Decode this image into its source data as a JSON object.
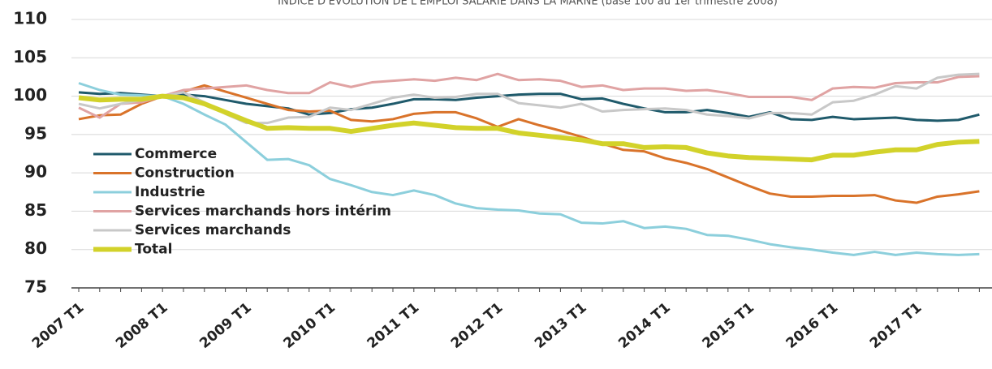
{
  "chart_data": {
    "type": "line",
    "title": "INDICE D'ÉVOLUTION DE L'EMPLOI SALARIÉ DANS LA MARNE (base 100 au 1er trimestre 2008)",
    "categories": [
      "2007 T1",
      null,
      null,
      null,
      "2008 T1",
      null,
      null,
      null,
      "2009 T1",
      null,
      null,
      null,
      "2010 T1",
      null,
      null,
      null,
      "2011 T1",
      null,
      null,
      null,
      "2012 T1",
      null,
      null,
      null,
      "2013 T1",
      null,
      null,
      null,
      "2014 T1",
      null,
      null,
      null,
      "2015 T1",
      null,
      null,
      null,
      "2016 T1",
      null,
      null,
      null,
      "2017 T1",
      null,
      null,
      null
    ],
    "ylim": [
      75,
      110
    ],
    "yticks": [
      75,
      80,
      85,
      90,
      95,
      100,
      105,
      110
    ],
    "grid": true,
    "series": [
      {
        "name": "Commerce",
        "color": "#1f5a6b",
        "width": 3,
        "values": [
          100.5,
          100.3,
          100.4,
          100.2,
          100.0,
          100.2,
          100.0,
          99.5,
          99.0,
          98.7,
          98.4,
          97.6,
          97.8,
          98.3,
          98.5,
          99.0,
          99.6,
          99.6,
          99.5,
          99.8,
          100.0,
          100.2,
          100.3,
          100.3,
          99.6,
          99.7,
          99.0,
          98.4,
          97.9,
          97.9,
          98.2,
          97.8,
          97.3,
          97.9,
          97.0,
          96.9,
          97.3,
          97.0,
          97.1,
          97.2,
          96.9,
          96.8,
          96.9,
          97.6
        ]
      },
      {
        "name": "Construction",
        "color": "#d9732a",
        "width": 3,
        "values": [
          97,
          97.5,
          97.6,
          99,
          100,
          100.6,
          101.4,
          100.6,
          99.8,
          99,
          98.2,
          98,
          98.1,
          96.9,
          96.7,
          97,
          97.7,
          97.9,
          97.9,
          97.1,
          96,
          97,
          96.2,
          95.5,
          94.7,
          93.8,
          93,
          92.8,
          91.9,
          91.3,
          90.5,
          89.4,
          88.3,
          87.3,
          86.9,
          86.9,
          87,
          87,
          87.1,
          86.4,
          86.1,
          86.9,
          87.2,
          87.6
        ]
      },
      {
        "name": "Industrie",
        "color": "#8ccfdc",
        "width": 3,
        "values": [
          101.7,
          100.8,
          100.2,
          100.1,
          100,
          99,
          97.6,
          96.3,
          94,
          91.7,
          91.8,
          91,
          89.2,
          88.4,
          87.5,
          87.1,
          87.7,
          87.1,
          86,
          85.4,
          85.2,
          85.1,
          84.7,
          84.6,
          83.5,
          83.4,
          83.7,
          82.8,
          83,
          82.7,
          81.9,
          81.8,
          81.3,
          80.7,
          80.3,
          80,
          79.6,
          79.3,
          79.7,
          79.3,
          79.6,
          79.4,
          79.3,
          79.4
        ]
      },
      {
        "name": "Services marchands hors intérim",
        "color": "#e0a3a3",
        "width": 3,
        "values": [
          98.5,
          97.2,
          99,
          99.2,
          100,
          100.8,
          101,
          101.2,
          101.4,
          100.8,
          100.4,
          100.4,
          101.8,
          101.2,
          101.8,
          102,
          102.2,
          102,
          102.4,
          102.1,
          102.9,
          102.1,
          102.2,
          102,
          101.2,
          101.4,
          100.8,
          101,
          101,
          100.7,
          100.8,
          100.4,
          99.9,
          99.9,
          99.9,
          99.5,
          101,
          101.2,
          101.1,
          101.7,
          101.8,
          101.8,
          102.5,
          102.6
        ]
      },
      {
        "name": "Services marchands",
        "color": "#c8c8c8",
        "width": 3,
        "values": [
          99,
          98.4,
          99,
          99.5,
          100,
          100.5,
          99.2,
          97.7,
          96.5,
          96.5,
          97.2,
          97.3,
          98.5,
          98.2,
          99,
          99.8,
          100.2,
          99.8,
          99.9,
          100.3,
          100.3,
          99.1,
          98.8,
          98.5,
          99,
          98,
          98.2,
          98.3,
          98.4,
          98.2,
          97.6,
          97.4,
          97.1,
          97.8,
          97.8,
          97.6,
          99.2,
          99.4,
          100.2,
          101.3,
          101,
          102.4,
          102.8,
          102.9
        ]
      },
      {
        "name": "Total",
        "color": "#d2d22a",
        "width": 6,
        "values": [
          99.8,
          99.5,
          99.6,
          99.6,
          100,
          99.8,
          99,
          97.9,
          96.8,
          95.8,
          95.9,
          95.8,
          95.8,
          95.4,
          95.8,
          96.2,
          96.5,
          96.2,
          95.9,
          95.8,
          95.8,
          95.2,
          94.9,
          94.6,
          94.3,
          93.8,
          93.8,
          93.3,
          93.4,
          93.3,
          92.6,
          92.2,
          92,
          91.9,
          91.8,
          91.7,
          92.3,
          92.3,
          92.7,
          93,
          93,
          93.7,
          94,
          94.1
        ]
      }
    ]
  }
}
